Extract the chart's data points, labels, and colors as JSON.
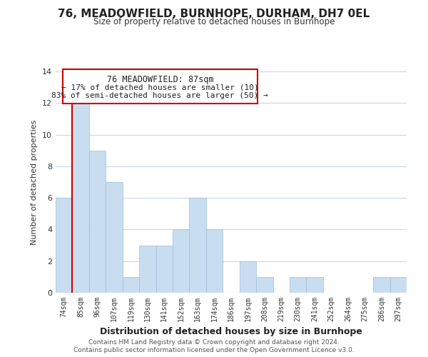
{
  "title": "76, MEADOWFIELD, BURNHOPE, DURHAM, DH7 0EL",
  "subtitle": "Size of property relative to detached houses in Burnhope",
  "xlabel": "Distribution of detached houses by size in Burnhope",
  "ylabel": "Number of detached properties",
  "bar_labels": [
    "74sqm",
    "85sqm",
    "96sqm",
    "107sqm",
    "119sqm",
    "130sqm",
    "141sqm",
    "152sqm",
    "163sqm",
    "174sqm",
    "186sqm",
    "197sqm",
    "208sqm",
    "219sqm",
    "230sqm",
    "241sqm",
    "252sqm",
    "264sqm",
    "275sqm",
    "286sqm",
    "297sqm"
  ],
  "bar_heights": [
    6,
    12,
    9,
    7,
    1,
    3,
    3,
    4,
    6,
    4,
    0,
    2,
    1,
    0,
    1,
    1,
    0,
    0,
    0,
    1,
    1
  ],
  "bar_color": "#c8ddf0",
  "bar_edge_color": "#a0bcd8",
  "highlight_line_color": "#cc0000",
  "highlight_bar_index": 1,
  "ylim": [
    0,
    14
  ],
  "yticks": [
    0,
    2,
    4,
    6,
    8,
    10,
    12,
    14
  ],
  "annotation_title": "76 MEADOWFIELD: 87sqm",
  "annotation_line1": "← 17% of detached houses are smaller (10)",
  "annotation_line2": "83% of semi-detached houses are larger (50) →",
  "annotation_box_color": "#ffffff",
  "annotation_box_edge": "#cc0000",
  "footer1": "Contains HM Land Registry data © Crown copyright and database right 2024.",
  "footer2": "Contains public sector information licensed under the Open Government Licence v3.0.",
  "background_color": "#ffffff",
  "grid_color": "#c8d8ec"
}
